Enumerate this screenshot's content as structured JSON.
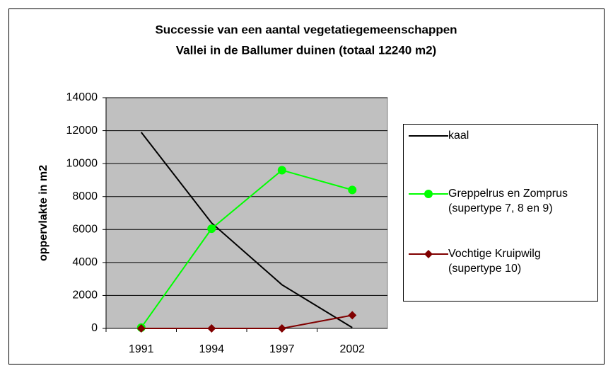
{
  "chart_data": {
    "type": "line",
    "title": "Successie van een aantal vegetatiegemeenschappen",
    "subtitle": "Vallei in de Ballumer duinen (totaal 12240 m2)",
    "ylabel": "oppervlakte in m2",
    "categories": [
      "1991",
      "1994",
      "1997",
      "2002"
    ],
    "series": [
      {
        "name": "kaal",
        "color": "#000000",
        "marker": "none",
        "values": [
          11900,
          6400,
          2650,
          50
        ]
      },
      {
        "name": "Greppelrus en Zomprus (supertype 7, 8 en 9)",
        "color": "#00ff00",
        "marker": "circle",
        "values": [
          50,
          6050,
          9600,
          8400
        ]
      },
      {
        "name": "Vochtige Kruipwilg (supertype 10)",
        "color": "#800000",
        "marker": "diamond",
        "values": [
          0,
          0,
          0,
          800
        ]
      }
    ],
    "ylim": [
      0,
      14000
    ],
    "yticks": [
      0,
      2000,
      4000,
      6000,
      8000,
      10000,
      12000,
      14000
    ],
    "grid": true,
    "legend": "right"
  }
}
